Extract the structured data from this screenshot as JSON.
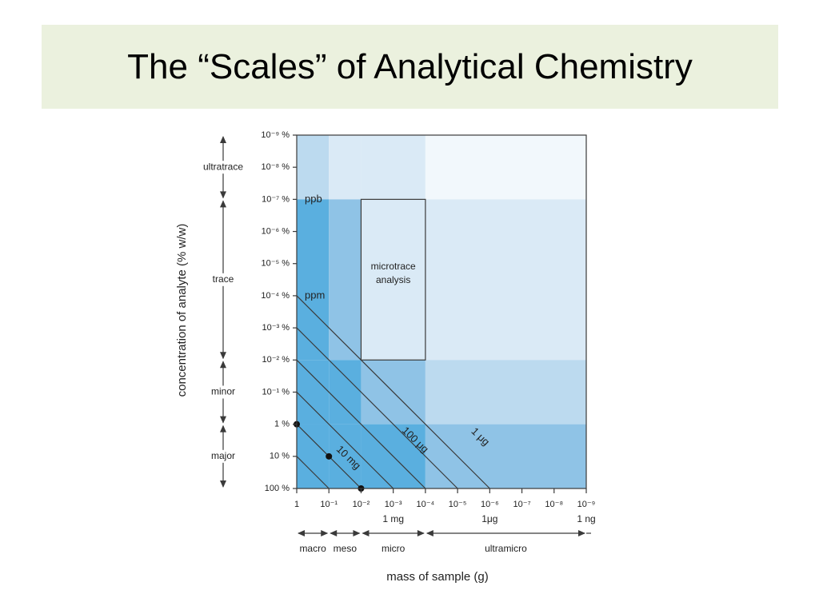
{
  "title": "The “Scales” of Analytical Chemistry",
  "y_axis_title": "concentration of analyte (% w/w)",
  "x_axis_title": "mass of sample (g)",
  "y_ticks": [
    "10⁻⁹ %",
    "10⁻⁸ %",
    "10⁻⁷ %",
    "10⁻⁶ %",
    "10⁻⁵ %",
    "10⁻⁴ %",
    "10⁻³ %",
    "10⁻² %",
    "10⁻¹ %",
    "1 %",
    "10 %",
    "100 %"
  ],
  "x_ticks": [
    "1",
    "10⁻¹",
    "10⁻²",
    "10⁻³",
    "10⁻⁴",
    "10⁻⁵",
    "10⁻⁶",
    "10⁻⁷",
    "10⁻⁸",
    "10⁻⁹"
  ],
  "x_unit_labels": [
    {
      "text": "1 mg",
      "tick": 3
    },
    {
      "text": "1μg",
      "tick": 6
    },
    {
      "text": "1 ng",
      "tick": 9
    }
  ],
  "concentration_ranges": [
    {
      "label": "ultratrace",
      "from_tick": 0,
      "to_tick": 2
    },
    {
      "label": "trace",
      "from_tick": 2,
      "to_tick": 7
    },
    {
      "label": "minor",
      "from_tick": 7,
      "to_tick": 9
    },
    {
      "label": "major",
      "from_tick": 9,
      "to_tick": 11
    }
  ],
  "mass_ranges": [
    {
      "label": "macro",
      "from_tick": 0,
      "to_tick": 1
    },
    {
      "label": "meso",
      "from_tick": 1,
      "to_tick": 2
    },
    {
      "label": "micro",
      "from_tick": 2,
      "to_tick": 4
    },
    {
      "label": "ultramicro",
      "from_tick": 4,
      "to_tick": 9
    }
  ],
  "region_labels": {
    "ppb": "ppb",
    "ppm": "ppm",
    "microtrace_1": "microtrace",
    "microtrace_2": "analysis"
  },
  "microtrace_box": {
    "x_from_tick": 2,
    "x_to_tick": 4,
    "y_from_tick": 2,
    "y_to_tick": 7
  },
  "diagonals": [
    {
      "label": "10 mg",
      "analyte_mass_g": 0.01
    },
    {
      "label": "100 μg",
      "analyte_mass_g": 0.0001
    },
    {
      "label": "1 μg",
      "analyte_mass_g": 1e-06
    }
  ],
  "colors": {
    "title_band": "#ebf1de",
    "shade_1": "#f2f8fc",
    "shade_2": "#daeaf6",
    "shade_3": "#bcdaef",
    "shade_4": "#8fc3e6",
    "shade_5": "#5aafdf",
    "line": "#3a3a3a"
  }
}
